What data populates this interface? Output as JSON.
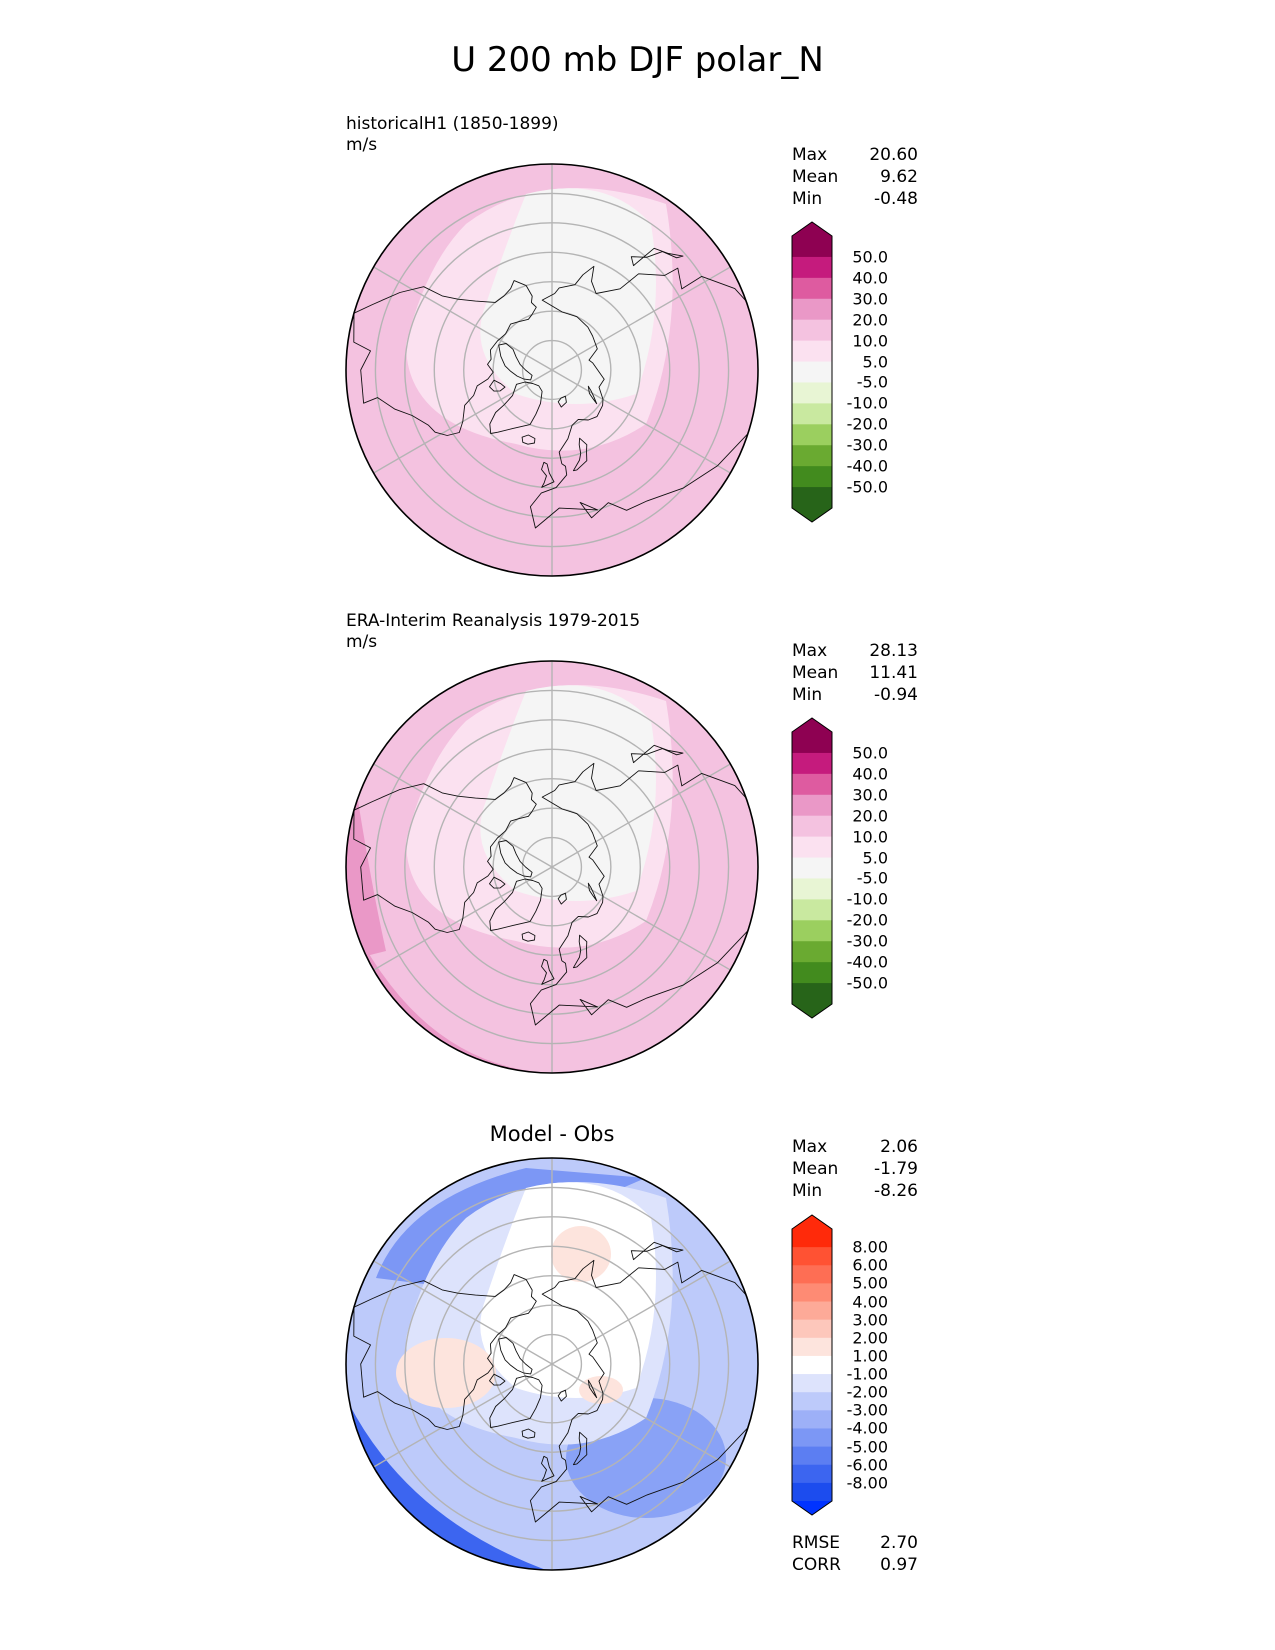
{
  "title": "U 200 mb DJF polar_N",
  "panels": [
    {
      "title_line1": "historicalH1 (1850-1899)",
      "title_line2": "m/s",
      "center_title": "",
      "stats": {
        "max_label": "Max",
        "max": "20.60",
        "mean_label": "Mean",
        "mean": "9.62",
        "min_label": "Min",
        "min": "-0.48"
      },
      "colorbar": {
        "labels": [
          "50.0",
          "40.0",
          "30.0",
          "20.0",
          "10.0",
          "5.0",
          "-5.0",
          "-10.0",
          "-20.0",
          "-30.0",
          "-40.0",
          "-50.0"
        ],
        "colors": [
          "#8e0152",
          "#c51b7d",
          "#de5ba0",
          "#ea98c7",
          "#f4c2e0",
          "#fbe1f0",
          "#f5f5f5",
          "#e8f5d4",
          "#c9e9a0",
          "#9bcf5f",
          "#6aaa31",
          "#428b1e",
          "#276419"
        ],
        "top_color": "#8e0152",
        "bottom_color": "#276419"
      },
      "field_colors": {
        "base": "#f4c2e0",
        "light": "#fbe1f0",
        "center": "#f5f5f5",
        "strong": "#ea98c7"
      }
    },
    {
      "title_line1": "ERA-Interim Reanalysis 1979-2015",
      "title_line2": "m/s",
      "center_title": "",
      "stats": {
        "max_label": "Max",
        "max": "28.13",
        "mean_label": "Mean",
        "mean": "11.41",
        "min_label": "Min",
        "min": "-0.94"
      },
      "colorbar": {
        "labels": [
          "50.0",
          "40.0",
          "30.0",
          "20.0",
          "10.0",
          "5.0",
          "-5.0",
          "-10.0",
          "-20.0",
          "-30.0",
          "-40.0",
          "-50.0"
        ],
        "colors": [
          "#8e0152",
          "#c51b7d",
          "#de5ba0",
          "#ea98c7",
          "#f4c2e0",
          "#fbe1f0",
          "#f5f5f5",
          "#e8f5d4",
          "#c9e9a0",
          "#9bcf5f",
          "#6aaa31",
          "#428b1e",
          "#276419"
        ],
        "top_color": "#8e0152",
        "bottom_color": "#276419"
      },
      "field_colors": {
        "base": "#f4c2e0",
        "light": "#fbe1f0",
        "center": "#f5f5f5",
        "strong": "#ea98c7"
      }
    },
    {
      "title_line1": "",
      "title_line2": "",
      "center_title": "Model - Obs",
      "stats": {
        "max_label": "Max",
        "max": "2.06",
        "mean_label": "Mean",
        "mean": "-1.79",
        "min_label": "Min",
        "min": "-8.26"
      },
      "colorbar": {
        "labels": [
          "8.00",
          "6.00",
          "5.00",
          "4.00",
          "3.00",
          "2.00",
          "1.00",
          "-1.00",
          "-2.00",
          "-3.00",
          "-4.00",
          "-5.00",
          "-6.00",
          "-8.00"
        ],
        "colors": [
          "#ff2a0a",
          "#ff5233",
          "#fe6e54",
          "#fe8b74",
          "#fdaa98",
          "#fdc7bb",
          "#fde4dd",
          "#ffffff",
          "#dde3fc",
          "#bdcafa",
          "#9db0f7",
          "#7c97f5",
          "#5c7ef2",
          "#3c65f0",
          "#1c4cee"
        ],
        "top_color": "#ff2a0a",
        "bottom_color": "#0033ff"
      },
      "field_colors": {
        "base": "#bdcafa",
        "light": "#dde3fc",
        "center": "#ffffff",
        "strong": "#7c97f5",
        "pos": "#fde4dd",
        "neg_deep": "#3c65f0"
      },
      "extra_stats": {
        "rmse_label": "RMSE",
        "rmse": "2.70",
        "corr_label": "CORR",
        "corr": "0.97"
      }
    }
  ]
}
